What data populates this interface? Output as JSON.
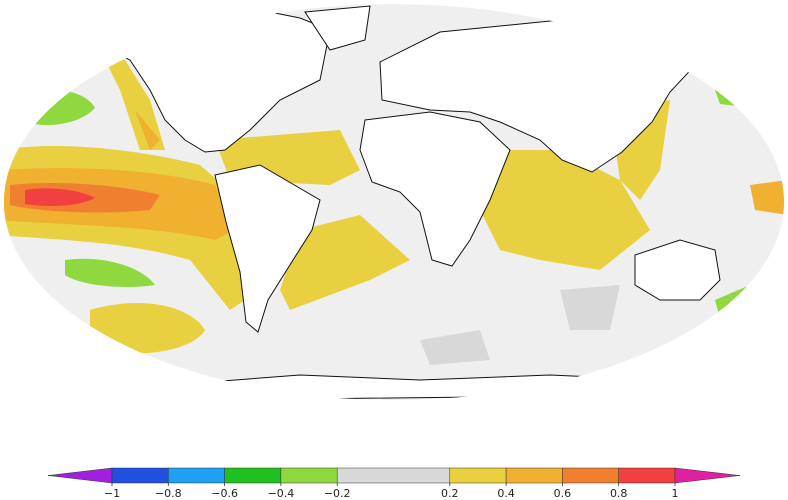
{
  "colorbar": {
    "colors": [
      "#a020e0",
      "#2050e0",
      "#20a0f0",
      "#20c020",
      "#90d840",
      "#d8d8d8",
      "#e8d040",
      "#f0b030",
      "#f08030",
      "#f04040",
      "#e020a0"
    ],
    "ticks": [
      {
        "value": -1,
        "label": "−1"
      },
      {
        "value": -0.8,
        "label": "−0.8"
      },
      {
        "value": -0.6,
        "label": "−0.6"
      },
      {
        "value": -0.4,
        "label": "−0.4"
      },
      {
        "value": -0.2,
        "label": "−0.2"
      },
      0.2,
      0.4,
      0.6,
      0.8,
      1
    ]
  }
}
